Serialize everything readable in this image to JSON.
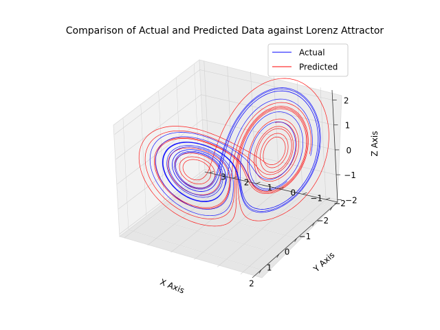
{
  "chart_data": {
    "type": "line",
    "projection": "3d",
    "title": "Comparison of Actual and Predicted Data against Lorenz Attractor",
    "xlabel": "X Axis",
    "ylabel": "Y Axis",
    "zlabel": "Z Axis",
    "xlim": [
      -2.3,
      2.5
    ],
    "ylim": [
      -2.5,
      3.2
    ],
    "zlim": [
      -2.1,
      2.4
    ],
    "x_ticks": [
      -2,
      -1,
      0,
      1,
      2
    ],
    "y_ticks": [
      -2,
      -1,
      0,
      1,
      2,
      3
    ],
    "z_ticks": [
      -2,
      -1,
      0,
      1,
      2
    ],
    "grid": true,
    "legend_position": "top-right",
    "series": [
      {
        "name": "Actual",
        "color": "#0000ff"
      },
      {
        "name": "Predicted",
        "color": "#ff0000"
      }
    ]
  }
}
